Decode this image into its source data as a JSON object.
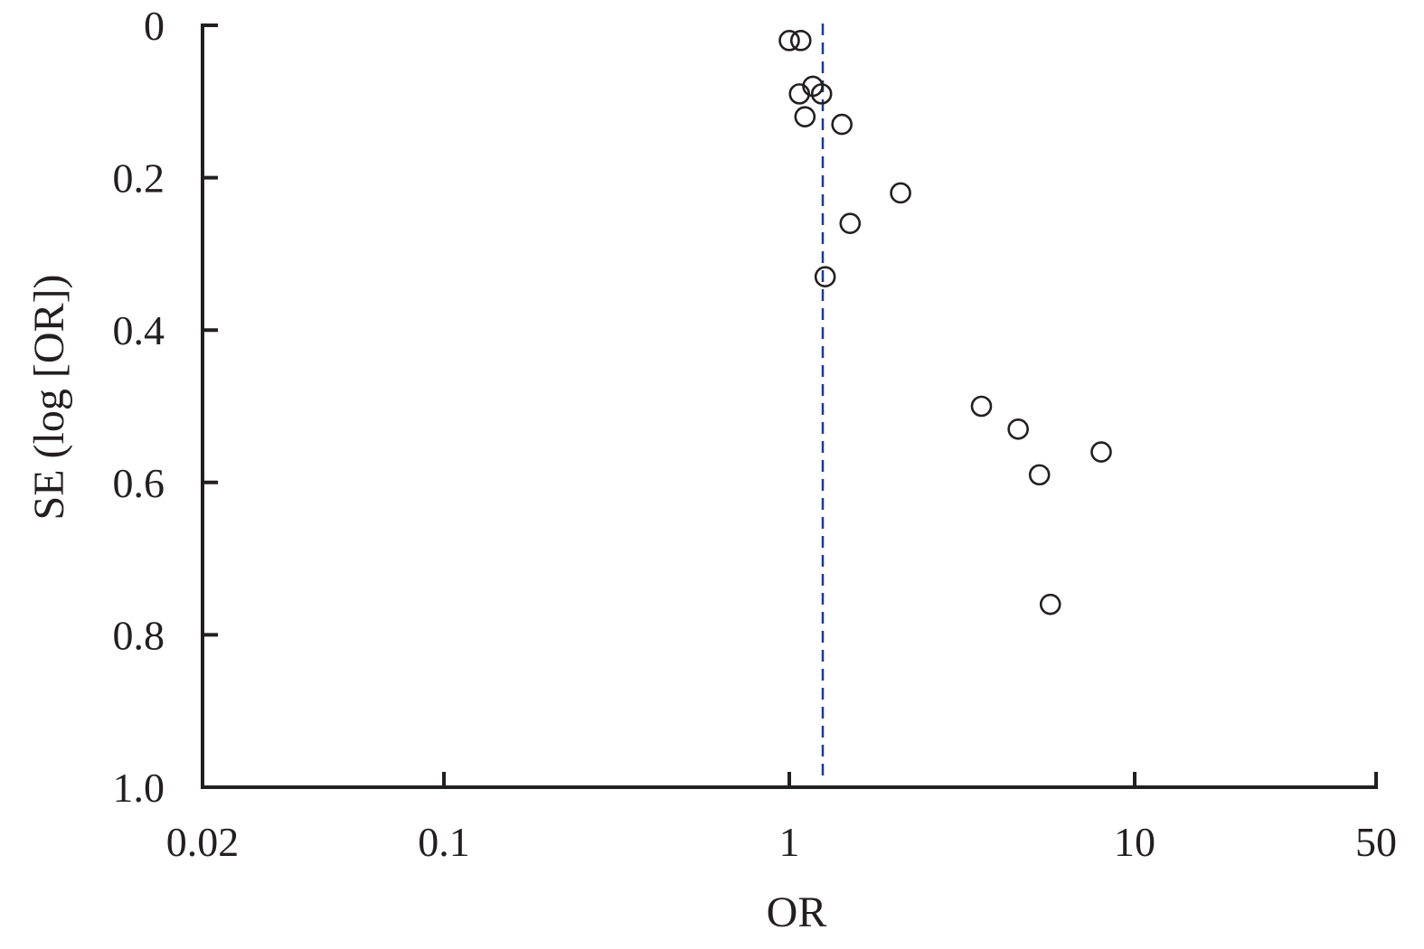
{
  "chart_data": {
    "type": "scatter",
    "title": "",
    "xlabel": "OR",
    "ylabel": "SE (log [OR])",
    "x_scale": "log",
    "xlim": [
      0.02,
      50
    ],
    "ylim": [
      0,
      1.0
    ],
    "y_inverted": true,
    "x_ticks": [
      {
        "value": 0.02,
        "label": "0.02"
      },
      {
        "value": 0.1,
        "label": "0.1"
      },
      {
        "value": 1,
        "label": "1"
      },
      {
        "value": 10,
        "label": "10"
      },
      {
        "value": 50,
        "label": "50"
      }
    ],
    "y_ticks": [
      {
        "value": 0,
        "label": "0"
      },
      {
        "value": 0.2,
        "label": "0.2"
      },
      {
        "value": 0.4,
        "label": "0.4"
      },
      {
        "value": 0.6,
        "label": "0.6"
      },
      {
        "value": 0.8,
        "label": "0.8"
      },
      {
        "value": 1.0,
        "label": "1.0"
      }
    ],
    "pooled_or": 1.25,
    "grid": false,
    "marker": "open-circle",
    "points": [
      {
        "x": 1.0,
        "y": 0.02
      },
      {
        "x": 1.08,
        "y": 0.02
      },
      {
        "x": 1.07,
        "y": 0.09
      },
      {
        "x": 1.17,
        "y": 0.08
      },
      {
        "x": 1.24,
        "y": 0.09
      },
      {
        "x": 1.11,
        "y": 0.12
      },
      {
        "x": 1.42,
        "y": 0.13
      },
      {
        "x": 2.1,
        "y": 0.22
      },
      {
        "x": 1.5,
        "y": 0.26
      },
      {
        "x": 1.27,
        "y": 0.33
      },
      {
        "x": 3.6,
        "y": 0.5
      },
      {
        "x": 4.6,
        "y": 0.53
      },
      {
        "x": 8.0,
        "y": 0.56
      },
      {
        "x": 5.3,
        "y": 0.59
      },
      {
        "x": 5.7,
        "y": 0.76
      }
    ],
    "colors": {
      "axis": "#231f20",
      "marker": "#231f20",
      "reference_line": "#1f3a8a"
    }
  }
}
